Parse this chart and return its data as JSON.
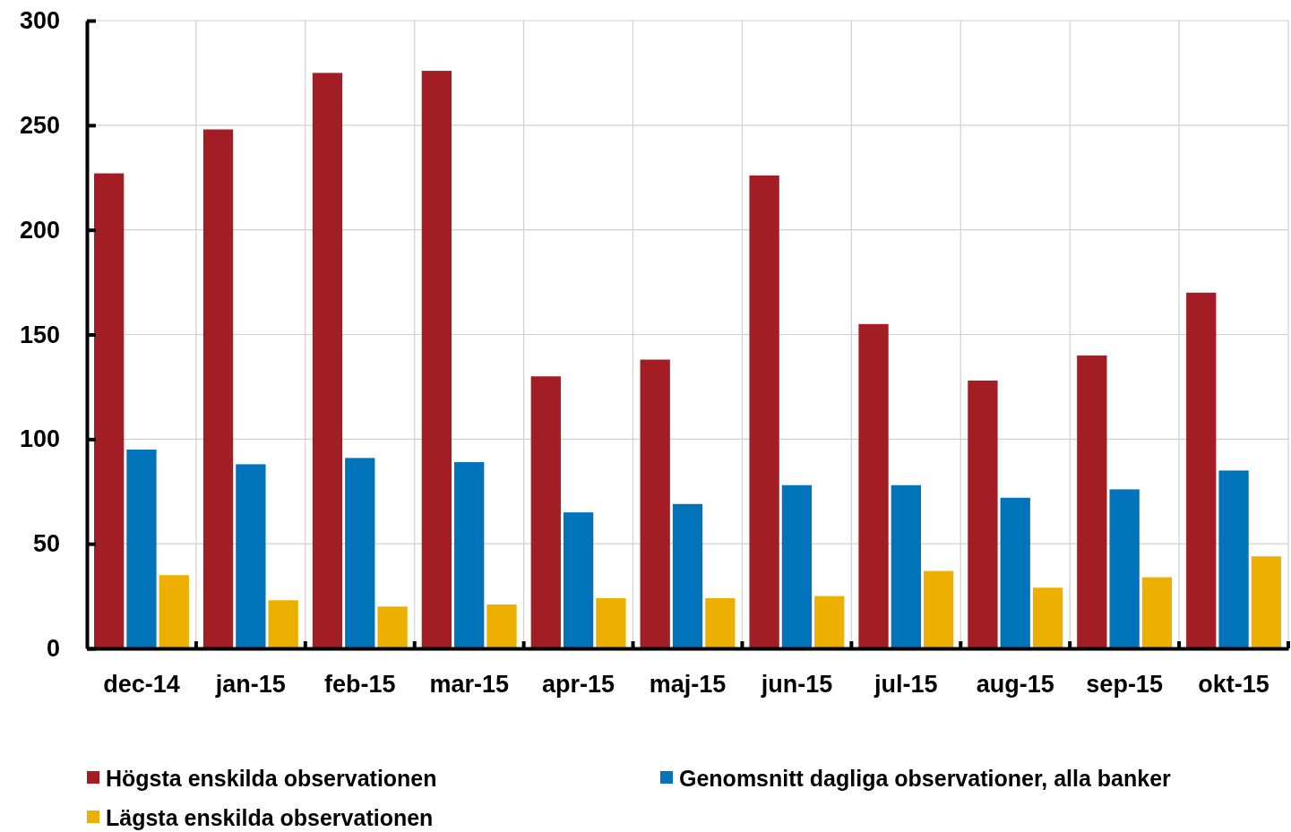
{
  "chart_data": {
    "type": "bar",
    "categories": [
      "dec-14",
      "jan-15",
      "feb-15",
      "mar-15",
      "apr-15",
      "maj-15",
      "jun-15",
      "jul-15",
      "aug-15",
      "sep-15",
      "okt-15"
    ],
    "series": [
      {
        "name": "Högsta enskilda observationen",
        "color": "#a31d24",
        "values": [
          227,
          248,
          275,
          276,
          130,
          138,
          226,
          155,
          128,
          140,
          170
        ]
      },
      {
        "name": "Genomsnitt dagliga observationer, alla banker",
        "color": "#0073bb",
        "values": [
          95,
          88,
          91,
          89,
          65,
          69,
          78,
          78,
          72,
          76,
          85
        ]
      },
      {
        "name": "Lägsta enskilda observationen",
        "color": "#edb000",
        "values": [
          35,
          23,
          20,
          21,
          24,
          24,
          25,
          37,
          29,
          34,
          44
        ]
      }
    ],
    "ylim": [
      0,
      300
    ],
    "yticks": [
      0,
      50,
      100,
      150,
      200,
      250,
      300
    ],
    "grid": true,
    "legend": "bottom"
  }
}
